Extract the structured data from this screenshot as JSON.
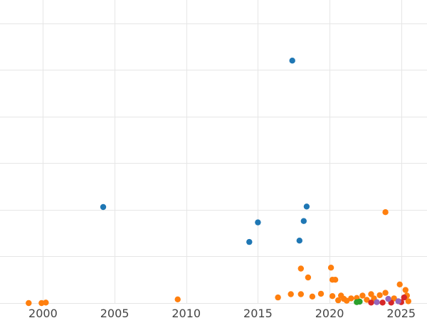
{
  "chart_data": {
    "type": "scatter",
    "title": "",
    "xlabel": "",
    "ylabel": "",
    "xlim": [
      1997.0,
      2026.8
    ],
    "ylim": [
      0,
      65
    ],
    "grid": true,
    "x_ticks": [
      2000,
      2005,
      2010,
      2015,
      2020,
      2025
    ],
    "x_tick_labels": [
      "2000",
      "2005",
      "2010",
      "2015",
      "2020",
      "2025"
    ],
    "y_gridlines": [
      0,
      10,
      20,
      30,
      40,
      50,
      60
    ],
    "series": [
      {
        "color": "#1f77b4",
        "points": [
          [
            2017.4,
            52.0
          ],
          [
            2004.2,
            20.6
          ],
          [
            2018.4,
            20.7
          ],
          [
            2018.2,
            17.6
          ],
          [
            2015.0,
            17.3
          ],
          [
            2014.4,
            13.1
          ],
          [
            2017.9,
            13.4
          ]
        ]
      },
      {
        "color": "#ff7f0e",
        "points": [
          [
            1999.0,
            0.0
          ],
          [
            1999.9,
            0.0
          ],
          [
            2000.2,
            0.1
          ],
          [
            2009.4,
            0.8
          ],
          [
            2016.4,
            1.2
          ],
          [
            2017.3,
            1.9
          ],
          [
            2018.0,
            1.9
          ],
          [
            2018.0,
            7.4
          ],
          [
            2018.5,
            5.5
          ],
          [
            2018.8,
            1.4
          ],
          [
            2019.4,
            2.0
          ],
          [
            2020.1,
            7.6
          ],
          [
            2020.2,
            5.0
          ],
          [
            2020.4,
            5.0
          ],
          [
            2020.2,
            1.5
          ],
          [
            2020.6,
            0.6
          ],
          [
            2020.8,
            1.6
          ],
          [
            2021.0,
            0.9
          ],
          [
            2021.2,
            0.5
          ],
          [
            2021.5,
            1.0
          ],
          [
            2021.9,
            1.1
          ],
          [
            2022.3,
            1.6
          ],
          [
            2022.6,
            0.7
          ],
          [
            2022.9,
            1.9
          ],
          [
            2023.1,
            1.0
          ],
          [
            2023.5,
            1.7
          ],
          [
            2023.9,
            2.2
          ],
          [
            2023.9,
            19.5
          ],
          [
            2024.5,
            1.0
          ],
          [
            2024.9,
            4.0
          ],
          [
            2025.3,
            2.8
          ],
          [
            2025.4,
            1.6
          ],
          [
            2025.5,
            0.4
          ]
        ]
      },
      {
        "color": "#2ca02c",
        "points": [
          [
            2021.9,
            0.2
          ],
          [
            2022.1,
            0.3
          ]
        ]
      },
      {
        "color": "#d62728",
        "points": [
          [
            2022.9,
            0.1
          ],
          [
            2023.7,
            0.1
          ],
          [
            2024.3,
            0.1
          ],
          [
            2025.0,
            0.2
          ],
          [
            2025.2,
            1.2
          ]
        ]
      },
      {
        "color": "#9467bd",
        "points": [
          [
            2023.3,
            0.2
          ],
          [
            2024.1,
            0.9
          ],
          [
            2024.8,
            0.4
          ]
        ]
      }
    ]
  }
}
